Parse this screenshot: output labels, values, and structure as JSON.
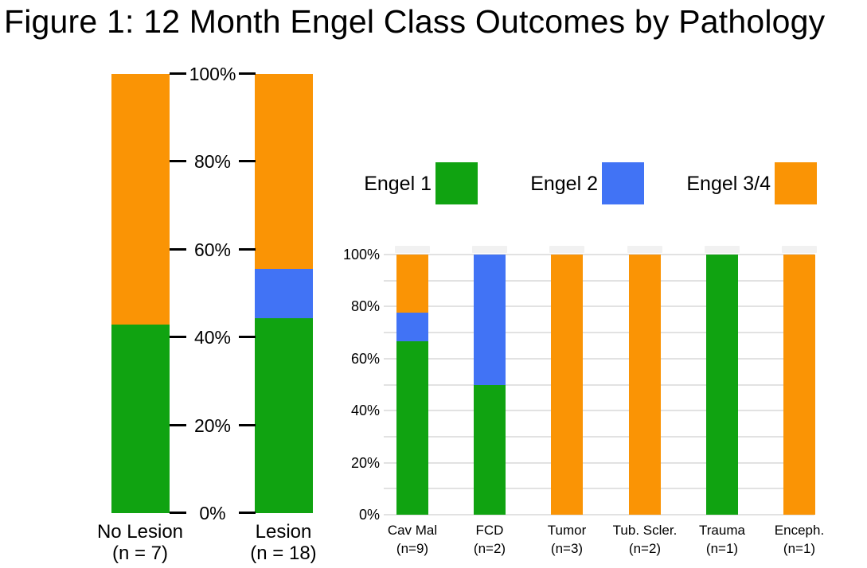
{
  "title": "Figure 1: 12 Month Engel Class Outcomes by Pathology",
  "colors": {
    "engel1": "#10A311",
    "engel2": "#4173F5",
    "engel34": "#FA9405",
    "gridline": "#E2E2E2",
    "axis_text": "#000000",
    "background": "#FFFFFF"
  },
  "legend": {
    "items": [
      {
        "label": "Engel 1",
        "color": "#10A311"
      },
      {
        "label": "Engel 2",
        "color": "#4173F5"
      },
      {
        "label": "Engel 3/4",
        "color": "#FA9405"
      }
    ]
  },
  "chart_data": [
    {
      "type": "bar",
      "subtype": "100%-stacked-column",
      "name": "outcomes-by-lesion-status",
      "categories": [
        "No Lesion",
        "Lesion"
      ],
      "category_sublabels": [
        "(n = 7)",
        "(n = 18)"
      ],
      "series": [
        {
          "name": "Engel 1",
          "color": "#10A311",
          "values": [
            42.9,
            44.4
          ]
        },
        {
          "name": "Engel 2",
          "color": "#4173F5",
          "values": [
            0,
            11.1
          ]
        },
        {
          "name": "Engel 3/4",
          "color": "#FA9405",
          "values": [
            57.1,
            44.4
          ]
        }
      ],
      "ylim": [
        0,
        100
      ],
      "yticks": [
        "0%",
        "20%",
        "40%",
        "60%",
        "80%",
        "100%"
      ],
      "grid": false,
      "axis_label_position": "between-bars"
    },
    {
      "type": "bar",
      "subtype": "100%-stacked-column",
      "name": "outcomes-by-pathology",
      "categories": [
        "Cav Mal",
        "FCD",
        "Tumor",
        "Tub. Scler.",
        "Trauma",
        "Enceph."
      ],
      "category_sublabels": [
        "(n=9)",
        "(n=2)",
        "(n=3)",
        "(n=2)",
        "(n=1)",
        "(n=1)"
      ],
      "series": [
        {
          "name": "Engel 1",
          "color": "#10A311",
          "values": [
            66.7,
            50,
            0,
            0,
            100,
            0
          ]
        },
        {
          "name": "Engel 2",
          "color": "#4173F5",
          "values": [
            11.1,
            50,
            0,
            0,
            0,
            0
          ]
        },
        {
          "name": "Engel 3/4",
          "color": "#FA9405",
          "values": [
            22.2,
            0,
            100,
            100,
            0,
            100
          ]
        }
      ],
      "ylim": [
        0,
        100
      ],
      "yticks": [
        "0%",
        "20%",
        "40%",
        "60%",
        "80%",
        "100%"
      ],
      "grid": true,
      "gridline_step_pct": 10,
      "axis_label_position": "left"
    }
  ]
}
